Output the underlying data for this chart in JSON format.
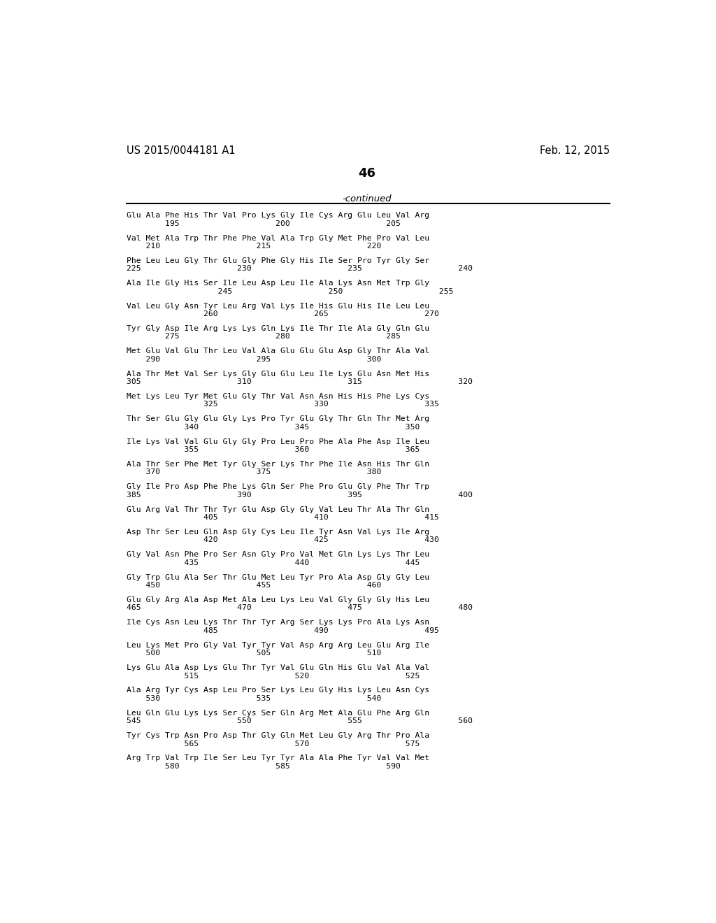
{
  "header_left": "US 2015/0044181 A1",
  "header_right": "Feb. 12, 2015",
  "page_number": "46",
  "continued_label": "-continued",
  "background_color": "#ffffff",
  "text_color": "#000000",
  "lines": [
    [
      "Glu Ala Phe His Thr Val Pro Lys Gly Ile Cys Arg Glu Leu Val Arg",
      "        195                    200                    205"
    ],
    [
      "Val Met Ala Trp Thr Phe Phe Val Ala Trp Gly Met Phe Pro Val Leu",
      "    210                    215                    220"
    ],
    [
      "Phe Leu Leu Gly Thr Glu Gly Phe Gly His Ile Ser Pro Tyr Gly Ser",
      "225                    230                    235                    240"
    ],
    [
      "Ala Ile Gly His Ser Ile Leu Asp Leu Ile Ala Lys Asn Met Trp Gly",
      "                   245                    250                    255"
    ],
    [
      "Val Leu Gly Asn Tyr Leu Arg Val Lys Ile His Glu His Ile Leu Leu",
      "                260                    265                    270"
    ],
    [
      "Tyr Gly Asp Ile Arg Lys Lys Gln Lys Ile Thr Ile Ala Gly Gln Glu",
      "        275                    280                    285"
    ],
    [
      "Met Glu Val Glu Thr Leu Val Ala Glu Glu Glu Asp Gly Thr Ala Val",
      "    290                    295                    300"
    ],
    [
      "Ala Thr Met Val Ser Lys Gly Glu Glu Leu Ile Lys Glu Asn Met His",
      "305                    310                    315                    320"
    ],
    [
      "Met Lys Leu Tyr Met Glu Gly Thr Val Asn Asn His His Phe Lys Cys",
      "                325                    330                    335"
    ],
    [
      "Thr Ser Glu Gly Glu Gly Lys Pro Tyr Glu Gly Thr Gln Thr Met Arg",
      "            340                    345                    350"
    ],
    [
      "Ile Lys Val Val Glu Gly Gly Pro Leu Pro Phe Ala Phe Asp Ile Leu",
      "            355                    360                    365"
    ],
    [
      "Ala Thr Ser Phe Met Tyr Gly Ser Lys Thr Phe Ile Asn His Thr Gln",
      "    370                    375                    380"
    ],
    [
      "Gly Ile Pro Asp Phe Phe Lys Gln Ser Phe Pro Glu Gly Phe Thr Trp",
      "385                    390                    395                    400"
    ],
    [
      "Glu Arg Val Thr Thr Tyr Glu Asp Gly Gly Val Leu Thr Ala Thr Gln",
      "                405                    410                    415"
    ],
    [
      "Asp Thr Ser Leu Gln Asp Gly Cys Leu Ile Tyr Asn Val Lys Ile Arg",
      "                420                    425                    430"
    ],
    [
      "Gly Val Asn Phe Pro Ser Asn Gly Pro Val Met Gln Lys Lys Thr Leu",
      "            435                    440                    445"
    ],
    [
      "Gly Trp Glu Ala Ser Thr Glu Met Leu Tyr Pro Ala Asp Gly Gly Leu",
      "    450                    455                    460"
    ],
    [
      "Glu Gly Arg Ala Asp Met Ala Leu Lys Leu Val Gly Gly Gly His Leu",
      "465                    470                    475                    480"
    ],
    [
      "Ile Cys Asn Leu Lys Thr Thr Tyr Arg Ser Lys Lys Pro Ala Lys Asn",
      "                485                    490                    495"
    ],
    [
      "Leu Lys Met Pro Gly Val Tyr Tyr Val Asp Arg Arg Leu Glu Arg Ile",
      "    500                    505                    510"
    ],
    [
      "Lys Glu Ala Asp Lys Glu Thr Tyr Val Glu Gln His Glu Val Ala Val",
      "            515                    520                    525"
    ],
    [
      "Ala Arg Tyr Cys Asp Leu Pro Ser Lys Leu Gly His Lys Leu Asn Cys",
      "    530                    535                    540"
    ],
    [
      "Leu Gln Glu Lys Lys Ser Cys Ser Gln Arg Met Ala Glu Phe Arg Gln",
      "545                    550                    555                    560"
    ],
    [
      "Tyr Cys Trp Asn Pro Asp Thr Gly Gln Met Leu Gly Arg Thr Pro Ala",
      "            565                    570                    575"
    ],
    [
      "Arg Trp Val Trp Ile Ser Leu Tyr Tyr Ala Ala Phe Tyr Val Val Met",
      "        580                    585                    590"
    ]
  ]
}
